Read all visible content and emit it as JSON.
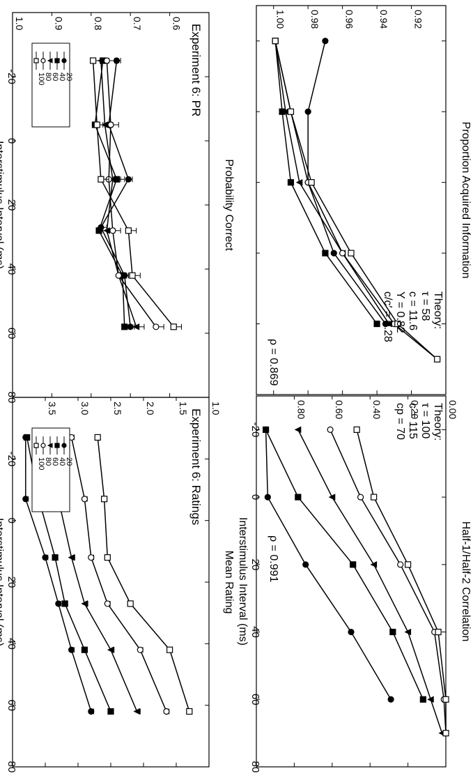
{
  "figure": {
    "shared_xlabel": "Interstimulus Interval (ms)",
    "series_names": [
      "20",
      "40",
      "60",
      "80",
      "100"
    ]
  },
  "chart_data": [
    {
      "id": "pr",
      "type": "line",
      "title": "Experiment 6: PR",
      "xlabel": "Interstimulus Interval (ms)",
      "ylabel": "Probability Correct",
      "xlim": [
        -40,
        80
      ],
      "ylim": [
        0.5,
        1.0
      ],
      "xticks": [
        -20,
        0,
        20,
        40,
        60,
        80
      ],
      "yticks": [
        0.6,
        0.7,
        0.8,
        0.9,
        1.0
      ],
      "ytick_labels": [
        "0.6",
        "0.7",
        "0.8",
        "0.9",
        "1.0"
      ],
      "legend": "bottom-left",
      "error_bars": true,
      "series": [
        {
          "name": "20",
          "marker": "filled-circle",
          "x": [
            -25,
            -5,
            12,
            27,
            42,
            58
          ],
          "y": [
            0.735,
            0.755,
            0.705,
            0.775,
            0.715,
            0.7
          ],
          "err": [
            0.01,
            0.01,
            0.01,
            0.015,
            0.01,
            0.01
          ]
        },
        {
          "name": "40",
          "marker": "filled-square",
          "x": [
            -25,
            -5,
            12,
            28,
            42,
            58
          ],
          "y": [
            0.77,
            0.79,
            0.735,
            0.78,
            0.72,
            0.715
          ],
          "err": [
            0.015,
            0.02,
            0.02,
            0.02,
            0.015,
            0.015
          ]
        },
        {
          "name": "60",
          "marker": "filled-triangle",
          "x": [
            -25,
            -5,
            12,
            28,
            42,
            58
          ],
          "y": [
            0.775,
            0.765,
            0.745,
            0.76,
            0.73,
            0.685
          ],
          "err": [
            0.02,
            0.02,
            0.02,
            0.02,
            0.02,
            0.02
          ]
        },
        {
          "name": "80",
          "marker": "open-circle",
          "x": [
            -25,
            -5,
            12,
            28,
            42,
            58
          ],
          "y": [
            0.76,
            0.75,
            0.755,
            0.745,
            0.73,
            0.635
          ],
          "err": [
            0.02,
            0.02,
            0.02,
            0.02,
            0.02,
            0.02
          ]
        },
        {
          "name": "100",
          "marker": "open-square",
          "x": [
            -25,
            -5,
            12,
            28,
            42,
            58
          ],
          "y": [
            0.795,
            0.785,
            0.775,
            0.705,
            0.695,
            0.59
          ],
          "err": [
            0.02,
            0.02,
            0.02,
            0.02,
            0.02,
            0.02
          ]
        }
      ]
    },
    {
      "id": "ratings",
      "type": "line",
      "title": "Experiment 6: Ratings",
      "xlabel": "Interstimulus Interval (ms)",
      "ylabel": "Mean Rating",
      "xlim": [
        -40,
        80
      ],
      "ylim": [
        1.0,
        4.0
      ],
      "xticks": [
        -20,
        0,
        20,
        40,
        60,
        80
      ],
      "yticks": [
        1.0,
        1.5,
        2.0,
        2.5,
        3.0,
        3.5
      ],
      "ytick_labels": [
        "1.0",
        "1.5",
        "2.0",
        "2.5",
        "3.0",
        "3.5"
      ],
      "legend": "bottom-left",
      "error_bars": true,
      "series": [
        {
          "name": "20",
          "marker": "filled-circle",
          "x": [
            -27,
            -7,
            12,
            27,
            42,
            62
          ],
          "y": [
            3.8,
            3.8,
            3.5,
            3.3,
            3.1,
            2.8
          ],
          "err": [
            0.04,
            0.04,
            0.04,
            0.04,
            0.04,
            0.04
          ]
        },
        {
          "name": "40",
          "marker": "filled-square",
          "x": [
            -27,
            -7,
            12,
            27,
            42,
            62
          ],
          "y": [
            3.78,
            3.6,
            3.35,
            3.2,
            2.9,
            2.5
          ],
          "err": [
            0.04,
            0.04,
            0.04,
            0.04,
            0.04,
            0.04
          ]
        },
        {
          "name": "60",
          "marker": "filled-triangle",
          "x": [
            -27,
            -7,
            12,
            27,
            42,
            62
          ],
          "y": [
            3.5,
            3.3,
            3.1,
            2.9,
            2.5,
            2.1
          ],
          "err": [
            0.05,
            0.05,
            0.05,
            0.05,
            0.05,
            0.05
          ]
        },
        {
          "name": "80",
          "marker": "open-circle",
          "x": [
            -27,
            -7,
            12,
            27,
            42,
            62
          ],
          "y": [
            3.1,
            2.9,
            2.8,
            2.55,
            2.05,
            1.65
          ],
          "err": [
            0.04,
            0.04,
            0.04,
            0.04,
            0.04,
            0.04
          ]
        },
        {
          "name": "100",
          "marker": "open-square",
          "x": [
            -27,
            -7,
            12,
            27,
            42,
            62
          ],
          "y": [
            2.7,
            2.6,
            2.55,
            2.2,
            1.6,
            1.3
          ],
          "err": [
            0.04,
            0.04,
            0.04,
            0.04,
            0.04,
            0.04
          ]
        }
      ]
    },
    {
      "id": "acquired",
      "type": "line",
      "xlabel": "",
      "ylabel": "Proportion Acquired Information",
      "xlim": [
        -30,
        80
      ],
      "ylim": [
        0.9,
        1.01
      ],
      "xticks": [
        -20,
        0,
        20,
        40,
        60,
        80
      ],
      "yticks": [
        0.92,
        0.94,
        0.96,
        0.98,
        1.0
      ],
      "ytick_labels": [
        "0.92",
        "0.94",
        "0.96",
        "0.98",
        "1.00"
      ],
      "annotation_lines": [
        "Theory:",
        "τ =   58",
        "c =   11.6",
        "Y =   0.82",
        "c/c′ = 0.28"
      ],
      "rho": "ρ = 0.869",
      "series": [
        {
          "name": "20",
          "marker": "filled-circle",
          "x": [
            -20,
            0,
            20,
            40,
            60
          ],
          "y": [
            0.97,
            0.98,
            0.98,
            0.965,
            0.935
          ],
          "err": []
        },
        {
          "name": "40",
          "marker": "filled-square",
          "x": [
            -20,
            0,
            20,
            40,
            60
          ],
          "y": [
            0.999,
            0.995,
            0.99,
            0.97,
            0.94
          ],
          "err": []
        },
        {
          "name": "60",
          "marker": "filled-triangle",
          "x": [
            -20,
            0,
            20,
            40,
            60
          ],
          "y": [
            0.999,
            0.993,
            0.985,
            0.96,
            0.933
          ],
          "err": []
        },
        {
          "name": "80",
          "marker": "open-circle",
          "x": [
            -20,
            0,
            20,
            40,
            60,
            70
          ],
          "y": [
            0.999,
            0.99,
            0.98,
            0.96,
            0.93,
            0.905
          ],
          "err": []
        },
        {
          "name": "100",
          "marker": "open-square",
          "x": [
            -20,
            0,
            20,
            40,
            60,
            70
          ],
          "y": [
            0.999,
            0.99,
            0.978,
            0.955,
            0.928,
            0.905
          ],
          "err": []
        }
      ]
    },
    {
      "id": "half-correlation",
      "type": "line",
      "xlabel": "Interstimulus Interval (ms)",
      "ylabel": "Half-1/Half-2 Correlation",
      "xlim": [
        -30,
        80
      ],
      "ylim": [
        0.0,
        1.0
      ],
      "xticks": [
        -20,
        0,
        20,
        40,
        60,
        80
      ],
      "yticks": [
        0.0,
        0.2,
        0.4,
        0.6,
        0.8
      ],
      "ytick_labels": [
        "0.00",
        "0.20",
        "0.40",
        "0.60",
        "0.80"
      ],
      "annotation_lines": [
        "Theory:",
        "τ = 100",
        "c = 115",
        "c",
        "p",
        " = 70"
      ],
      "rho": "ρ = 0.991",
      "series": [
        {
          "name": "20",
          "marker": "filled-circle",
          "x": [
            -20,
            0,
            20,
            40,
            60
          ],
          "y": [
            0.95,
            0.94,
            0.74,
            0.5,
            0.29
          ],
          "err": []
        },
        {
          "name": "40",
          "marker": "filled-square",
          "x": [
            -20,
            0,
            20,
            40,
            60
          ],
          "y": [
            0.95,
            0.78,
            0.49,
            0.28,
            0.12
          ],
          "err": []
        },
        {
          "name": "60",
          "marker": "filled-triangle",
          "x": [
            -20,
            0,
            20,
            40,
            60,
            70
          ],
          "y": [
            0.78,
            0.6,
            0.38,
            0.2,
            0.08,
            0.02
          ],
          "err": []
        },
        {
          "name": "80",
          "marker": "open-circle",
          "x": [
            -20,
            0,
            20,
            40,
            60,
            70
          ],
          "y": [
            0.61,
            0.45,
            0.24,
            0.06,
            0.01,
            0.0
          ],
          "err": []
        },
        {
          "name": "100",
          "marker": "open-square",
          "x": [
            -20,
            0,
            20,
            40,
            60,
            70
          ],
          "y": [
            0.47,
            0.38,
            0.2,
            0.04,
            0.0,
            0.0
          ],
          "err": []
        }
      ]
    }
  ]
}
